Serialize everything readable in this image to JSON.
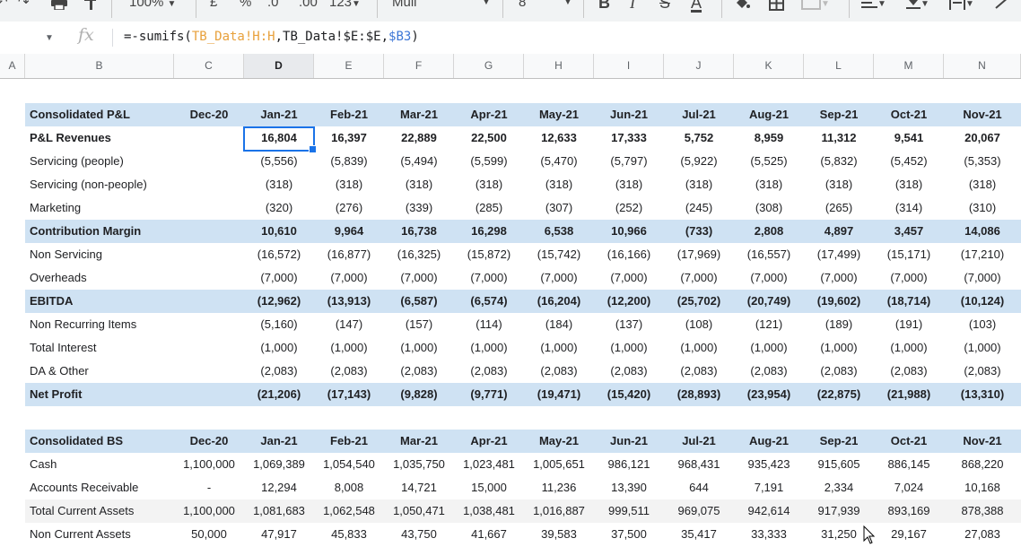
{
  "toolbar": {
    "zoom": "100%",
    "currency": "£",
    "percent": "%",
    "dec_decrease": ".0",
    "dec_increase": ".00",
    "more_formats": "123",
    "font": "Muli",
    "font_size": "8",
    "bold": "B",
    "italic": "I",
    "strikethrough": "S",
    "text_color": "A"
  },
  "formula": {
    "prefix": "=-sumifs(",
    "ref1": "TB_Data!H:H",
    "comma1": ",",
    "ref2": "TB_Data!$E:$E",
    "comma2": ",",
    "ref3": "$B3",
    "suffix": ")"
  },
  "columns": [
    "A",
    "B",
    "C",
    "D",
    "E",
    "F",
    "G",
    "H",
    "I",
    "J",
    "K",
    "L",
    "M",
    "N"
  ],
  "pl": {
    "header": [
      "Consolidated P&L",
      "Dec-20",
      "Jan-21",
      "Feb-21",
      "Mar-21",
      "Apr-21",
      "May-21",
      "Jun-21",
      "Jul-21",
      "Aug-21",
      "Sep-21",
      "Oct-21",
      "Nov-21"
    ],
    "rows": [
      [
        "P&L Revenues",
        "",
        "16,804",
        "16,397",
        "22,889",
        "22,500",
        "12,633",
        "17,333",
        "5,752",
        "8,959",
        "11,312",
        "9,541",
        "20,067"
      ],
      [
        "Servicing (people)",
        "",
        "(5,556)",
        "(5,839)",
        "(5,494)",
        "(5,599)",
        "(5,470)",
        "(5,797)",
        "(5,922)",
        "(5,525)",
        "(5,832)",
        "(5,452)",
        "(5,353)"
      ],
      [
        "Servicing (non-people)",
        "",
        "(318)",
        "(318)",
        "(318)",
        "(318)",
        "(318)",
        "(318)",
        "(318)",
        "(318)",
        "(318)",
        "(318)",
        "(318)"
      ],
      [
        "Marketing",
        "",
        "(320)",
        "(276)",
        "(339)",
        "(285)",
        "(307)",
        "(252)",
        "(245)",
        "(308)",
        "(265)",
        "(314)",
        "(310)"
      ],
      [
        "Contribution Margin",
        "",
        "10,610",
        "9,964",
        "16,738",
        "16,298",
        "6,538",
        "10,966",
        "(733)",
        "2,808",
        "4,897",
        "3,457",
        "14,086"
      ],
      [
        "Non Servicing",
        "",
        "(16,572)",
        "(16,877)",
        "(16,325)",
        "(15,872)",
        "(15,742)",
        "(16,166)",
        "(17,969)",
        "(16,557)",
        "(17,499)",
        "(15,171)",
        "(17,210)"
      ],
      [
        "Overheads",
        "",
        "(7,000)",
        "(7,000)",
        "(7,000)",
        "(7,000)",
        "(7,000)",
        "(7,000)",
        "(7,000)",
        "(7,000)",
        "(7,000)",
        "(7,000)",
        "(7,000)"
      ],
      [
        "EBITDA",
        "",
        "(12,962)",
        "(13,913)",
        "(6,587)",
        "(6,574)",
        "(16,204)",
        "(12,200)",
        "(25,702)",
        "(20,749)",
        "(19,602)",
        "(18,714)",
        "(10,124)"
      ],
      [
        "Non Recurring Items",
        "",
        "(5,160)",
        "(147)",
        "(157)",
        "(114)",
        "(184)",
        "(137)",
        "(108)",
        "(121)",
        "(189)",
        "(191)",
        "(103)"
      ],
      [
        "Total Interest",
        "",
        "(1,000)",
        "(1,000)",
        "(1,000)",
        "(1,000)",
        "(1,000)",
        "(1,000)",
        "(1,000)",
        "(1,000)",
        "(1,000)",
        "(1,000)",
        "(1,000)"
      ],
      [
        "DA & Other",
        "",
        "(2,083)",
        "(2,083)",
        "(2,083)",
        "(2,083)",
        "(2,083)",
        "(2,083)",
        "(2,083)",
        "(2,083)",
        "(2,083)",
        "(2,083)",
        "(2,083)"
      ],
      [
        "Net Profit",
        "",
        "(21,206)",
        "(17,143)",
        "(9,828)",
        "(9,771)",
        "(19,471)",
        "(15,420)",
        "(28,893)",
        "(23,954)",
        "(22,875)",
        "(21,988)",
        "(13,310)"
      ]
    ]
  },
  "bs": {
    "header": [
      "Consolidated BS",
      "Dec-20",
      "Jan-21",
      "Feb-21",
      "Mar-21",
      "Apr-21",
      "May-21",
      "Jun-21",
      "Jul-21",
      "Aug-21",
      "Sep-21",
      "Oct-21",
      "Nov-21"
    ],
    "rows": [
      [
        "Cash",
        "1,100,000",
        "1,069,389",
        "1,054,540",
        "1,035,750",
        "1,023,481",
        "1,005,651",
        "986,121",
        "968,431",
        "935,423",
        "915,605",
        "886,145",
        "868,220"
      ],
      [
        "Accounts Receivable",
        "-",
        "12,294",
        "8,008",
        "14,721",
        "15,000",
        "11,236",
        "13,390",
        "644",
        "7,191",
        "2,334",
        "7,024",
        "10,168"
      ],
      [
        "Total Current Assets",
        "1,100,000",
        "1,081,683",
        "1,062,548",
        "1,050,471",
        "1,038,481",
        "1,016,887",
        "999,511",
        "969,075",
        "942,614",
        "917,939",
        "893,169",
        "878,388"
      ],
      [
        "Non Current Assets",
        "50,000",
        "47,917",
        "45,833",
        "43,750",
        "41,667",
        "39,583",
        "37,500",
        "35,417",
        "33,333",
        "31,250",
        "29,167",
        "27,083"
      ]
    ]
  }
}
